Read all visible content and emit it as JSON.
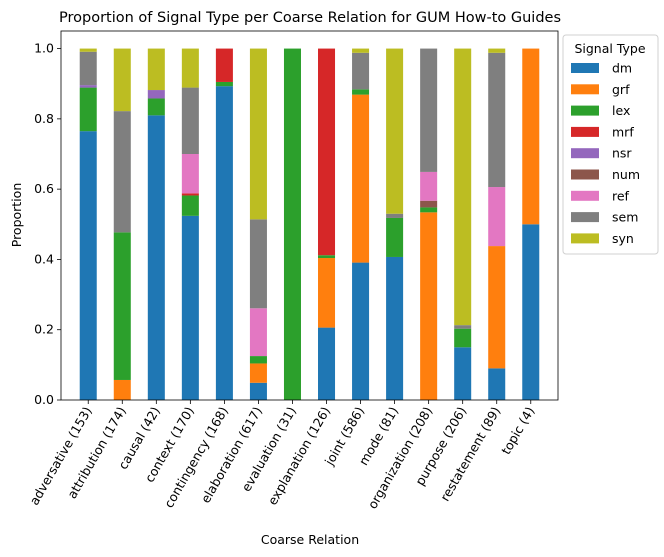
{
  "chart_data": {
    "type": "bar",
    "stacked": true,
    "title": "Proportion of Signal Type per Coarse Relation for GUM How-to Guides",
    "xlabel": "Coarse Relation",
    "ylabel": "Proportion",
    "ylim": [
      0,
      1.05
    ],
    "yticks": [
      "0.0",
      "0.2",
      "0.4",
      "0.6",
      "0.8",
      "1.0"
    ],
    "grid": false,
    "legend": {
      "title": "Signal Type",
      "placement": "outside-right"
    },
    "categories": [
      "adversative (153)",
      "attribution (174)",
      "causal (42)",
      "context (170)",
      "contingency (168)",
      "elaboration (617)",
      "evaluation (31)",
      "explanation (126)",
      "joint (586)",
      "mode (81)",
      "organization (208)",
      "purpose (206)",
      "restatement (89)",
      "topic (4)"
    ],
    "series": [
      {
        "name": "dm",
        "color": "#1f77b4",
        "values": [
          0.765,
          0,
          0.81,
          0.524,
          0.893,
          0.049,
          0,
          0.206,
          0.391,
          0.407,
          0,
          0.15,
          0.09,
          0.5
        ]
      },
      {
        "name": "grf",
        "color": "#ff7f0e",
        "values": [
          0,
          0.057,
          0,
          0,
          0,
          0.055,
          0,
          0.198,
          0.478,
          0,
          0.534,
          0,
          0.348,
          0.5
        ]
      },
      {
        "name": "lex",
        "color": "#2ca02c",
        "values": [
          0.124,
          0.42,
          0.048,
          0.058,
          0.012,
          0.021,
          1.0,
          0.008,
          0.015,
          0.111,
          0.014,
          0.053,
          0,
          0
        ]
      },
      {
        "name": "mrf",
        "color": "#d62728",
        "values": [
          0,
          0,
          0,
          0.006,
          0.095,
          0,
          0,
          0.588,
          0,
          0,
          0,
          0,
          0,
          0
        ]
      },
      {
        "name": "nsr",
        "color": "#9467bd",
        "values": [
          0.007,
          0,
          0.024,
          0,
          0,
          0,
          0,
          0,
          0,
          0,
          0,
          0,
          0,
          0
        ]
      },
      {
        "name": "num",
        "color": "#8c564b",
        "values": [
          0,
          0,
          0,
          0,
          0,
          0,
          0,
          0,
          0,
          0,
          0.019,
          0,
          0,
          0
        ]
      },
      {
        "name": "ref",
        "color": "#e377c2",
        "values": [
          0,
          0,
          0,
          0.112,
          0,
          0.136,
          0,
          0,
          0,
          0,
          0.082,
          0,
          0.168,
          0
        ]
      },
      {
        "name": "sem",
        "color": "#7f7f7f",
        "values": [
          0.095,
          0.345,
          0,
          0.189,
          0,
          0.253,
          0,
          0,
          0.104,
          0.012,
          0.351,
          0.01,
          0.382,
          0
        ]
      },
      {
        "name": "syn",
        "color": "#bcbd22",
        "values": [
          0.009,
          0.178,
          0.118,
          0.111,
          0,
          0.486,
          0,
          0,
          0.012,
          0.47,
          0,
          0.787,
          0.012,
          0
        ]
      }
    ]
  }
}
